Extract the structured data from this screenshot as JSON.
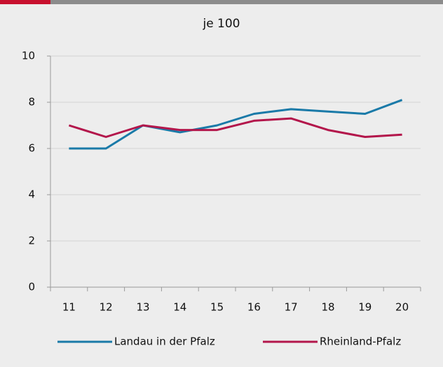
{
  "chart_data": {
    "type": "line",
    "title": "je 100",
    "categories": [
      "11",
      "12",
      "13",
      "14",
      "15",
      "16",
      "17",
      "18",
      "19",
      "20"
    ],
    "series": [
      {
        "name": "Landau in der Pfalz",
        "color": "#1a7aa8",
        "values": [
          6,
          6,
          7,
          6.7,
          7,
          7.5,
          7.7,
          7.6,
          7.5,
          8.1
        ]
      },
      {
        "name": "Rheinland-Pfalz",
        "color": "#b3164b",
        "values": [
          7,
          6.5,
          7,
          6.8,
          6.8,
          7.2,
          7.3,
          6.8,
          6.5,
          6.6
        ]
      }
    ],
    "ylim": [
      0,
      10
    ],
    "yticks": [
      0,
      2,
      4,
      6,
      8,
      10
    ],
    "grid": true,
    "legend": "bottom"
  }
}
